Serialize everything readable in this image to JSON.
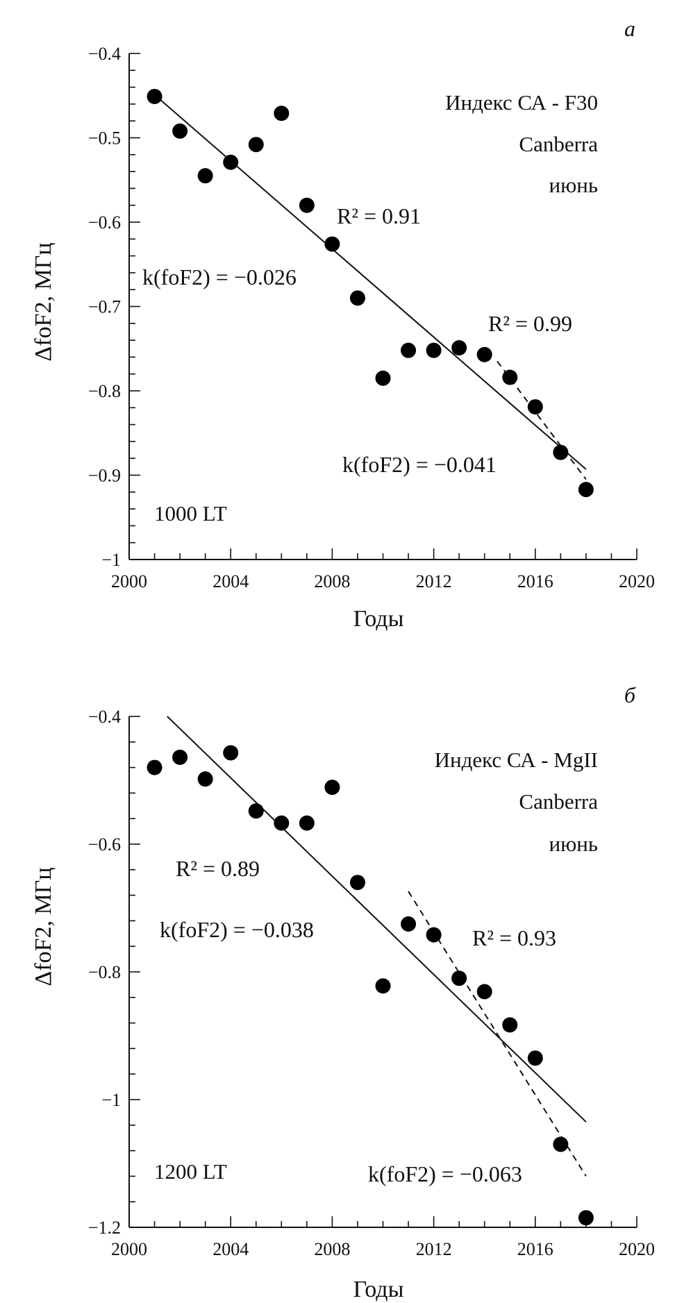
{
  "chart_data": [
    {
      "type": "scatter",
      "panel_label": "а",
      "title_lines": [
        "Индекс СА - F30",
        "Canberra",
        "июнь"
      ],
      "time_label": "1000 LT",
      "xlabel": "Годы",
      "ylabel": "ΔfoF2, МГц",
      "xlim": [
        2000,
        2020
      ],
      "ylim": [
        -1,
        -0.4
      ],
      "xticks": [
        2000,
        2004,
        2008,
        2012,
        2016,
        2020
      ],
      "xtick_labels": [
        "2000",
        "2004",
        "2008",
        "2012",
        "2016",
        "2020"
      ],
      "yticks": [
        -0.4,
        -0.5,
        -0.6,
        -0.7,
        -0.8,
        -0.9,
        -1
      ],
      "ytick_labels": [
        "−0.4",
        "−0.5",
        "−0.6",
        "−0.7",
        "−0.8",
        "−0.9",
        "−1"
      ],
      "x": [
        2001,
        2002,
        2003,
        2004,
        2005,
        2006,
        2007,
        2008,
        2009,
        2010,
        2011,
        2012,
        2013,
        2014,
        2015,
        2016,
        2017,
        2018
      ],
      "y": [
        -0.451,
        -0.492,
        -0.545,
        -0.529,
        -0.508,
        -0.471,
        -0.58,
        -0.626,
        -0.69,
        -0.785,
        -0.752,
        -0.752,
        -0.749,
        -0.757,
        -0.784,
        -0.819,
        -0.873,
        -0.917
      ],
      "fits": [
        {
          "name": "solid",
          "style": "solid",
          "x": [
            2001,
            2018
          ],
          "y": [
            -0.449,
            -0.893
          ]
        },
        {
          "name": "dashed",
          "style": "dashed",
          "x": [
            2014.5,
            2018
          ],
          "y": [
            -0.765,
            -0.905
          ]
        }
      ],
      "annotations": {
        "r2_full": "R² = 0.91",
        "k_full": "k(foF2) = −0.026",
        "r2_tail": "R² = 0.99",
        "k_tail": "k(foF2) = −0.041"
      }
    },
    {
      "type": "scatter",
      "panel_label": "б",
      "title_lines": [
        "Индекс СА - MgII",
        "Canberra",
        "июнь"
      ],
      "time_label": "1200 LT",
      "xlabel": "Годы",
      "ylabel": "ΔfoF2, МГц",
      "xlim": [
        2000,
        2020
      ],
      "ylim": [
        -1.2,
        -0.4
      ],
      "xticks": [
        2000,
        2004,
        2008,
        2012,
        2016,
        2020
      ],
      "xtick_labels": [
        "2000",
        "2004",
        "2008",
        "2012",
        "2016",
        "2020"
      ],
      "yticks": [
        -0.4,
        -0.6,
        -0.8,
        -1,
        -1.2
      ],
      "ytick_labels": [
        "−0.4",
        "−0.6",
        "−0.8",
        "−1",
        "−1.2"
      ],
      "x": [
        2001,
        2002,
        2003,
        2004,
        2005,
        2006,
        2007,
        2008,
        2009,
        2010,
        2011,
        2012,
        2013,
        2014,
        2015,
        2016,
        2017,
        2018
      ],
      "y": [
        -0.48,
        -0.464,
        -0.498,
        -0.457,
        -0.548,
        -0.567,
        -0.567,
        -0.511,
        -0.66,
        -0.822,
        -0.725,
        -0.742,
        -0.81,
        -0.831,
        -0.883,
        -0.935,
        -1.07,
        -1.185
      ],
      "fits": [
        {
          "name": "solid",
          "style": "solid",
          "x": [
            2001.5,
            2018
          ],
          "y": [
            -0.4,
            -1.035
          ]
        },
        {
          "name": "dashed",
          "style": "dashed",
          "x": [
            2011,
            2018
          ],
          "y": [
            -0.674,
            -1.12
          ]
        }
      ],
      "annotations": {
        "r2_full": "R² = 0.89",
        "k_full": "k(foF2) = −0.038",
        "r2_tail": "R² = 0.93",
        "k_tail": "k(foF2) = −0.063"
      }
    }
  ]
}
